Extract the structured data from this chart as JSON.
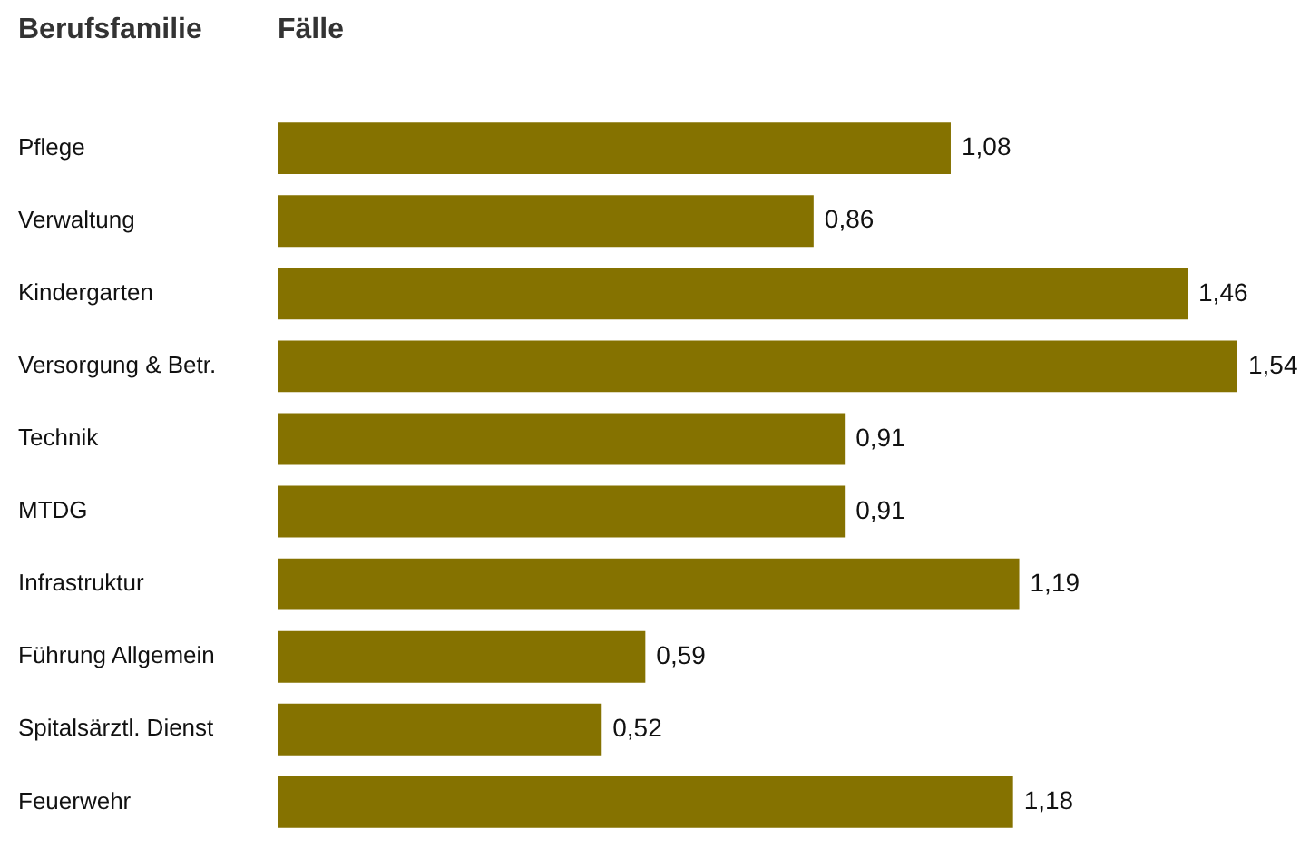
{
  "chart_data": {
    "type": "bar",
    "orientation": "horizontal",
    "xlabel": "Fälle",
    "ylabel": "Berufsfamilie",
    "categories": [
      "Pflege",
      "Verwaltung",
      "Kindergarten",
      "Versorgung & Betr.",
      "Technik",
      "MTDG",
      "Infrastruktur",
      "Führung Allgemein",
      "Spitalsärztl. Dienst",
      "Feuerwehr"
    ],
    "values": [
      1.08,
      0.86,
      1.46,
      1.54,
      0.91,
      0.91,
      1.19,
      0.59,
      0.52,
      1.18
    ],
    "value_labels": [
      "1,08",
      "0,86",
      "1,46",
      "1,54",
      "0,91",
      "0,91",
      "1,19",
      "0,59",
      "0,52",
      "1,18"
    ],
    "color": "#857200"
  }
}
